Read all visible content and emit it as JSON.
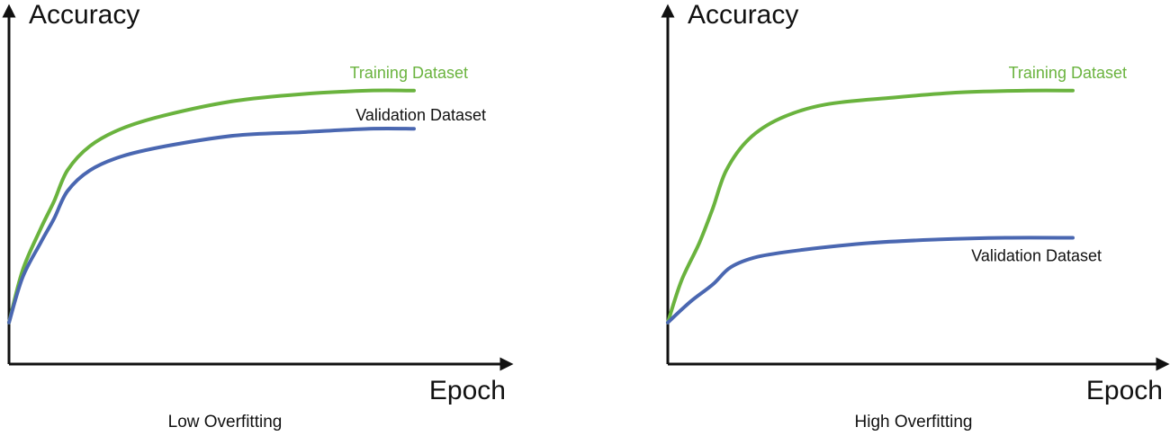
{
  "colors": {
    "training": "#6ab33e",
    "validation": "#4a67b1",
    "axis": "#111111"
  },
  "chart_data": [
    {
      "type": "line",
      "panel": "left",
      "caption": "Low Overfitting",
      "xlabel": "Epoch",
      "ylabel": "Accuracy",
      "xlim": [
        0,
        1
      ],
      "ylim": [
        0,
        1
      ],
      "grid": false,
      "ticks": false,
      "series": [
        {
          "name": "Training Dataset",
          "color_key": "training",
          "label_anchor": "end",
          "points": [
            [
              0,
              0.12
            ],
            [
              0.03,
              0.27
            ],
            [
              0.07,
              0.39
            ],
            [
              0.1,
              0.47
            ],
            [
              0.13,
              0.56
            ],
            [
              0.18,
              0.63
            ],
            [
              0.25,
              0.68
            ],
            [
              0.35,
              0.72
            ],
            [
              0.5,
              0.76
            ],
            [
              0.65,
              0.78
            ],
            [
              0.8,
              0.79
            ],
            [
              0.9,
              0.79
            ]
          ]
        },
        {
          "name": "Validation Dataset",
          "color_key": "validation",
          "label_anchor": "end",
          "points": [
            [
              0,
              0.12
            ],
            [
              0.03,
              0.25
            ],
            [
              0.07,
              0.35
            ],
            [
              0.1,
              0.42
            ],
            [
              0.13,
              0.5
            ],
            [
              0.18,
              0.56
            ],
            [
              0.25,
              0.6
            ],
            [
              0.35,
              0.63
            ],
            [
              0.5,
              0.66
            ],
            [
              0.65,
              0.67
            ],
            [
              0.8,
              0.68
            ],
            [
              0.9,
              0.68
            ]
          ]
        }
      ]
    },
    {
      "type": "line",
      "panel": "right",
      "caption": "High Overfitting",
      "xlabel": "Epoch",
      "ylabel": "Accuracy",
      "xlim": [
        0,
        1
      ],
      "ylim": [
        0,
        1
      ],
      "grid": false,
      "ticks": false,
      "series": [
        {
          "name": "Training Dataset",
          "color_key": "training",
          "label_anchor": "end",
          "points": [
            [
              0,
              0.12
            ],
            [
              0.03,
              0.24
            ],
            [
              0.07,
              0.35
            ],
            [
              0.1,
              0.45
            ],
            [
              0.13,
              0.56
            ],
            [
              0.18,
              0.65
            ],
            [
              0.25,
              0.71
            ],
            [
              0.35,
              0.75
            ],
            [
              0.5,
              0.77
            ],
            [
              0.65,
              0.785
            ],
            [
              0.8,
              0.79
            ],
            [
              0.9,
              0.79
            ]
          ]
        },
        {
          "name": "Validation Dataset",
          "color_key": "validation",
          "label_anchor": "below-end",
          "points": [
            [
              0,
              0.12
            ],
            [
              0.05,
              0.18
            ],
            [
              0.1,
              0.23
            ],
            [
              0.14,
              0.28
            ],
            [
              0.2,
              0.31
            ],
            [
              0.3,
              0.33
            ],
            [
              0.45,
              0.35
            ],
            [
              0.6,
              0.36
            ],
            [
              0.75,
              0.365
            ],
            [
              0.9,
              0.365
            ]
          ]
        }
      ]
    }
  ]
}
